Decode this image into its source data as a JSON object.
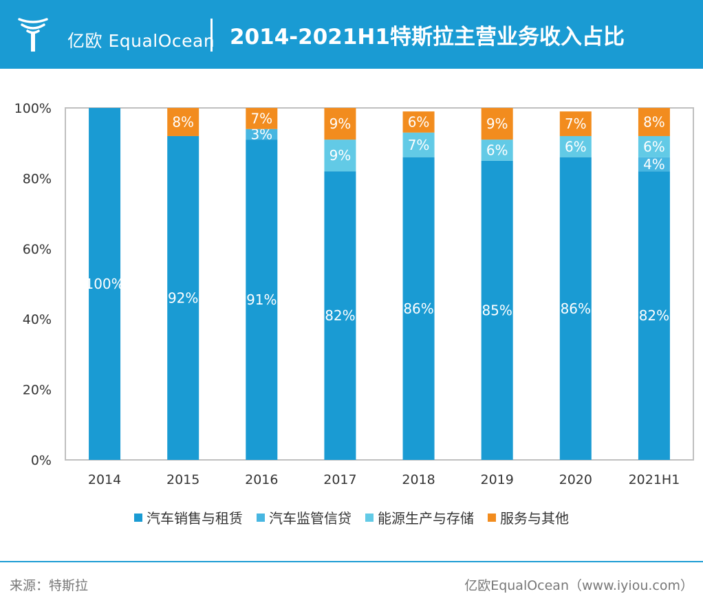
{
  "header": {
    "logo_text": "亿欧 EqualOcean",
    "title": "2014-2021H1特斯拉主营业务收入占比"
  },
  "chart_data": {
    "type": "bar",
    "stacked": true,
    "categories": [
      "2014",
      "2015",
      "2016",
      "2017",
      "2018",
      "2019",
      "2020",
      "2021H1"
    ],
    "series": [
      {
        "name": "汽车销售与租赁",
        "color": "#1a9bd3",
        "values": [
          100,
          92,
          91,
          82,
          86,
          85,
          86,
          82
        ]
      },
      {
        "name": "汽车监管信贷",
        "color": "#47b6e1",
        "values": [
          0,
          0,
          3,
          0,
          0,
          0,
          0,
          4
        ]
      },
      {
        "name": "能源生产与存储",
        "color": "#62cae6",
        "values": [
          0,
          0,
          0,
          9,
          7,
          6,
          6,
          6
        ]
      },
      {
        "name": "服务与其他",
        "color": "#f28c1e",
        "values": [
          0,
          8,
          7,
          9,
          6,
          9,
          7,
          8
        ]
      }
    ],
    "labels": [
      [
        "100%",
        "",
        "",
        ""
      ],
      [
        "92%",
        "",
        "",
        "8%"
      ],
      [
        "91%",
        "3%",
        "",
        "7%"
      ],
      [
        "82%",
        "",
        "9%",
        "9%"
      ],
      [
        "86%",
        "",
        "7%",
        "6%"
      ],
      [
        "85%",
        "",
        "6%",
        "9%"
      ],
      [
        "86%",
        "",
        "6%",
        "7%"
      ],
      [
        "82%",
        "4%",
        "6%",
        "8%"
      ]
    ],
    "y_ticks": [
      "0%",
      "20%",
      "40%",
      "60%",
      "80%",
      "100%"
    ],
    "ylim": [
      0,
      100
    ],
    "legend_position": "bottom"
  },
  "footer": {
    "source": "来源：特斯拉",
    "brand": "亿欧EqualOcean（www.iyiou.com）"
  }
}
